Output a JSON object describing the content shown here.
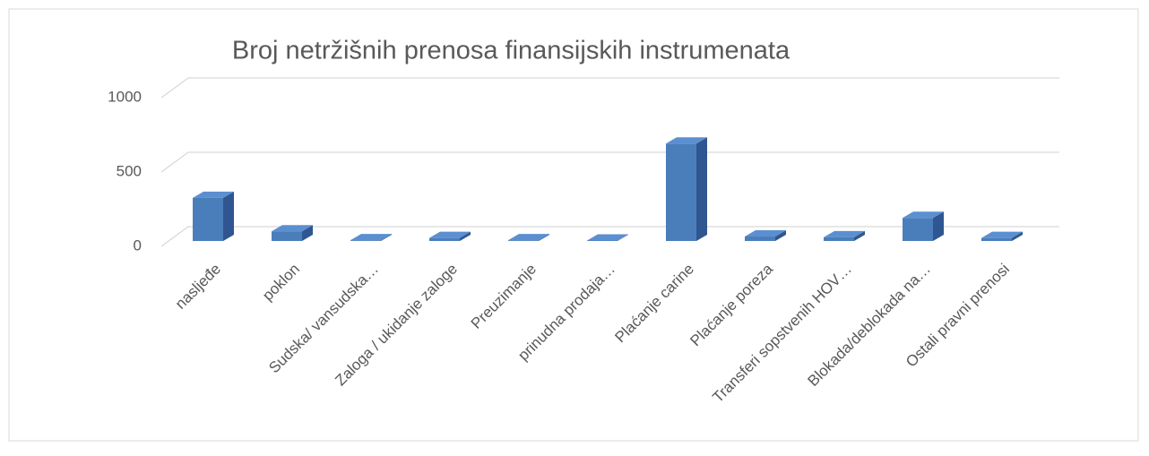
{
  "chart_data": {
    "type": "bar3d",
    "title": "Broj netržišnih prenosa finansijskih instrumenata",
    "categories": [
      "nasljeđe",
      "poklon",
      "Sudska/ vansudska…",
      "Zaloga / ukidanje zaloge",
      "Preuzimanje",
      "prinudna prodaja…",
      "Plaćanje carine",
      "Plaćanje poreza",
      "Transferi sopstvenih HOV…",
      "Blokada/deblokada na…",
      "Ostali pravni prenosi"
    ],
    "values": [
      290,
      65,
      5,
      20,
      5,
      3,
      655,
      30,
      25,
      155,
      20
    ],
    "color": "#4a7ebb",
    "ylim": [
      0,
      1000
    ],
    "yticks": [
      0,
      500,
      1000
    ],
    "grid": true
  }
}
